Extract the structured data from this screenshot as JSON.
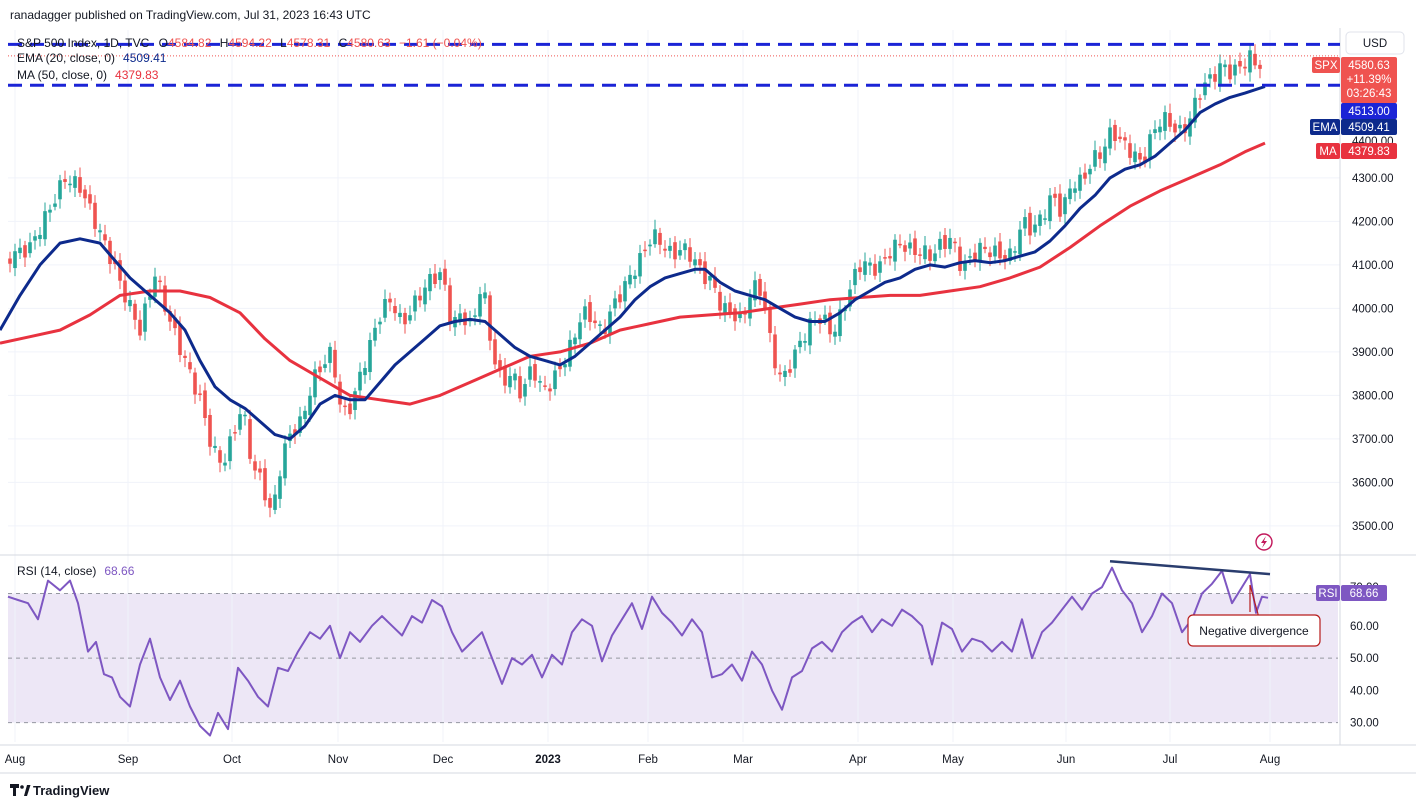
{
  "header": {
    "publisher": "ranadagger published on TradingView.com, Jul 31, 2023 16:43 UTC",
    "symbol": "S&P 500 Index, 1D, TVC",
    "open_label": "O",
    "open": "4584.82",
    "high_label": "H",
    "high": "4594.22",
    "low_label": "L",
    "low": "4578.31",
    "close_label": "C",
    "close": "4580.63",
    "change": "−1.61 (−0.04%)",
    "ema_label": "EMA (20, close, 0)",
    "ema_value": "4509.41",
    "ma_label": "MA (50, close, 0)",
    "ma_value": "4379.83",
    "rsi_label": "RSI (14, close)",
    "rsi_value": "68.66"
  },
  "currency": "USD",
  "price_axis": {
    "ticks": [
      "4300.00",
      "4200.00",
      "4100.00",
      "4000.00",
      "3900.00",
      "3800.00",
      "3700.00",
      "3600.00",
      "3500.00"
    ],
    "tick_values": [
      4300,
      4200,
      4100,
      4000,
      3900,
      3800,
      3700,
      3600,
      3500
    ],
    "min": 3440,
    "max": 4640
  },
  "tags": {
    "spx_label": "SPX",
    "spx_price": "4580.63",
    "spx_change": "+11.39%",
    "spx_time": "03:26:43",
    "level_tag": "4513.00",
    "hidden_tag": "4400.00",
    "ema_name": "EMA",
    "ema_value": "4509.41",
    "ma_name": "MA",
    "ma_value": "4379.83",
    "rsi_name": "RSI",
    "rsi_value": "68.66",
    "rsi_hidden": "70.00"
  },
  "rsi_axis": {
    "ticks": [
      "60.00",
      "50.00",
      "40.00",
      "30.00"
    ],
    "tick_values": [
      60,
      50,
      40,
      30
    ],
    "min": 24,
    "max": 81,
    "band_upper": 70,
    "band_middle": 50,
    "band_lower": 30
  },
  "time_axis": [
    "Aug",
    "Sep",
    "Oct",
    "Nov",
    "Dec",
    "2023",
    "Feb",
    "Mar",
    "Apr",
    "May",
    "Jun",
    "Jul",
    "Aug"
  ],
  "annotation": "Negative divergence",
  "footer_brand": "TradingView",
  "colors": {
    "up": "#26a69a",
    "down": "#ef5350",
    "ema": "#0d2a8c",
    "ma": "#e8323f",
    "hline": "#1b24d6",
    "rsi": "#7e57c2",
    "rsi_band": "#ede7f6",
    "divergence": "#2a3d6e",
    "annotation_border": "#b71c1c"
  },
  "chart_data": {
    "type": "candlestick",
    "symbol": "SPX",
    "timeframe": "1D",
    "horizontal_levels": [
      4607,
      4513
    ],
    "series": [
      {
        "name": "EMA (20, close, 0)",
        "last": 4509.41,
        "points": [
          [
            0,
            3950
          ],
          [
            20,
            4030
          ],
          [
            40,
            4100
          ],
          [
            60,
            4150
          ],
          [
            80,
            4160
          ],
          [
            100,
            4150
          ],
          [
            115,
            4110
          ],
          [
            130,
            4070
          ],
          [
            150,
            4030
          ],
          [
            170,
            3990
          ],
          [
            185,
            3950
          ],
          [
            200,
            3880
          ],
          [
            215,
            3820
          ],
          [
            230,
            3790
          ],
          [
            245,
            3770
          ],
          [
            260,
            3740
          ],
          [
            275,
            3710
          ],
          [
            290,
            3700
          ],
          [
            305,
            3730
          ],
          [
            320,
            3780
          ],
          [
            335,
            3800
          ],
          [
            350,
            3790
          ],
          [
            365,
            3790
          ],
          [
            380,
            3830
          ],
          [
            395,
            3870
          ],
          [
            410,
            3900
          ],
          [
            425,
            3930
          ],
          [
            440,
            3960
          ],
          [
            455,
            3970
          ],
          [
            470,
            3975
          ],
          [
            485,
            3970
          ],
          [
            500,
            3940
          ],
          [
            515,
            3910
          ],
          [
            530,
            3890
          ],
          [
            545,
            3880
          ],
          [
            560,
            3870
          ],
          [
            575,
            3890
          ],
          [
            590,
            3920
          ],
          [
            605,
            3950
          ],
          [
            620,
            3980
          ],
          [
            635,
            4020
          ],
          [
            650,
            4050
          ],
          [
            665,
            4070
          ],
          [
            680,
            4080
          ],
          [
            695,
            4090
          ],
          [
            705,
            4090
          ],
          [
            720,
            4060
          ],
          [
            735,
            4040
          ],
          [
            750,
            4030
          ],
          [
            765,
            4020
          ],
          [
            780,
            4000
          ],
          [
            795,
            3980
          ],
          [
            810,
            3970
          ],
          [
            825,
            3970
          ],
          [
            840,
            3990
          ],
          [
            855,
            4020
          ],
          [
            870,
            4040
          ],
          [
            885,
            4060
          ],
          [
            900,
            4070
          ],
          [
            915,
            4090
          ],
          [
            930,
            4100
          ],
          [
            945,
            4095
          ],
          [
            960,
            4105
          ],
          [
            975,
            4110
          ],
          [
            990,
            4105
          ],
          [
            1005,
            4110
          ],
          [
            1020,
            4120
          ],
          [
            1035,
            4130
          ],
          [
            1050,
            4155
          ],
          [
            1065,
            4190
          ],
          [
            1080,
            4230
          ],
          [
            1095,
            4260
          ],
          [
            1110,
            4300
          ],
          [
            1125,
            4320
          ],
          [
            1140,
            4330
          ],
          [
            1155,
            4350
          ],
          [
            1170,
            4380
          ],
          [
            1185,
            4410
          ],
          [
            1200,
            4450
          ],
          [
            1215,
            4470
          ],
          [
            1230,
            4485
          ],
          [
            1245,
            4495
          ],
          [
            1265,
            4510
          ]
        ]
      },
      {
        "name": "MA (50, close, 0)",
        "last": 4379.83,
        "points": [
          [
            0,
            3920
          ],
          [
            30,
            3935
          ],
          [
            60,
            3950
          ],
          [
            90,
            3985
          ],
          [
            120,
            4030
          ],
          [
            150,
            4040
          ],
          [
            180,
            4040
          ],
          [
            210,
            4025
          ],
          [
            240,
            3990
          ],
          [
            265,
            3930
          ],
          [
            290,
            3880
          ],
          [
            320,
            3840
          ],
          [
            350,
            3800
          ],
          [
            380,
            3790
          ],
          [
            410,
            3780
          ],
          [
            440,
            3800
          ],
          [
            470,
            3830
          ],
          [
            500,
            3860
          ],
          [
            530,
            3890
          ],
          [
            560,
            3900
          ],
          [
            590,
            3920
          ],
          [
            620,
            3950
          ],
          [
            650,
            3965
          ],
          [
            680,
            3980
          ],
          [
            710,
            3985
          ],
          [
            740,
            3990
          ],
          [
            770,
            4000
          ],
          [
            800,
            4010
          ],
          [
            830,
            4020
          ],
          [
            860,
            4025
          ],
          [
            890,
            4030
          ],
          [
            920,
            4030
          ],
          [
            950,
            4040
          ],
          [
            980,
            4050
          ],
          [
            1010,
            4070
          ],
          [
            1040,
            4095
          ],
          [
            1070,
            4140
          ],
          [
            1100,
            4190
          ],
          [
            1130,
            4235
          ],
          [
            1160,
            4270
          ],
          [
            1190,
            4300
          ],
          [
            1220,
            4330
          ],
          [
            1245,
            4360
          ],
          [
            1265,
            4380
          ]
        ]
      },
      {
        "name": "RSI (14, close)",
        "last": 68.66,
        "points": [
          [
            8,
            69
          ],
          [
            18,
            68
          ],
          [
            28,
            67
          ],
          [
            38,
            62
          ],
          [
            48,
            74
          ],
          [
            60,
            71
          ],
          [
            70,
            74
          ],
          [
            78,
            67
          ],
          [
            88,
            52
          ],
          [
            96,
            55
          ],
          [
            104,
            45
          ],
          [
            112,
            44
          ],
          [
            120,
            38
          ],
          [
            130,
            35
          ],
          [
            140,
            48
          ],
          [
            150,
            56
          ],
          [
            160,
            44
          ],
          [
            170,
            37
          ],
          [
            180,
            43
          ],
          [
            190,
            35
          ],
          [
            200,
            29
          ],
          [
            210,
            26
          ],
          [
            218,
            33
          ],
          [
            228,
            28
          ],
          [
            238,
            47
          ],
          [
            248,
            43
          ],
          [
            258,
            38
          ],
          [
            268,
            35
          ],
          [
            278,
            47
          ],
          [
            288,
            46
          ],
          [
            298,
            52
          ],
          [
            310,
            58
          ],
          [
            320,
            56
          ],
          [
            330,
            60
          ],
          [
            340,
            50
          ],
          [
            350,
            58
          ],
          [
            360,
            55
          ],
          [
            372,
            60
          ],
          [
            382,
            63
          ],
          [
            392,
            60
          ],
          [
            402,
            57
          ],
          [
            412,
            63
          ],
          [
            422,
            61
          ],
          [
            432,
            68
          ],
          [
            442,
            66
          ],
          [
            452,
            58
          ],
          [
            462,
            52
          ],
          [
            472,
            55
          ],
          [
            482,
            58
          ],
          [
            492,
            50
          ],
          [
            502,
            42
          ],
          [
            512,
            50
          ],
          [
            522,
            48
          ],
          [
            532,
            51
          ],
          [
            542,
            44
          ],
          [
            552,
            51
          ],
          [
            562,
            48
          ],
          [
            572,
            58
          ],
          [
            582,
            62
          ],
          [
            592,
            60
          ],
          [
            602,
            49
          ],
          [
            612,
            57
          ],
          [
            622,
            62
          ],
          [
            632,
            67
          ],
          [
            642,
            59
          ],
          [
            652,
            69
          ],
          [
            662,
            64
          ],
          [
            672,
            61
          ],
          [
            682,
            57
          ],
          [
            692,
            62
          ],
          [
            702,
            58
          ],
          [
            712,
            44
          ],
          [
            722,
            45
          ],
          [
            732,
            48
          ],
          [
            742,
            43
          ],
          [
            752,
            52
          ],
          [
            762,
            48
          ],
          [
            772,
            40
          ],
          [
            782,
            34
          ],
          [
            792,
            44
          ],
          [
            802,
            46
          ],
          [
            812,
            53
          ],
          [
            822,
            55
          ],
          [
            832,
            52
          ],
          [
            842,
            58
          ],
          [
            852,
            61
          ],
          [
            862,
            63
          ],
          [
            872,
            58
          ],
          [
            882,
            62
          ],
          [
            892,
            60
          ],
          [
            902,
            65
          ],
          [
            912,
            63
          ],
          [
            922,
            60
          ],
          [
            932,
            48
          ],
          [
            942,
            61
          ],
          [
            952,
            59
          ],
          [
            962,
            52
          ],
          [
            972,
            56
          ],
          [
            982,
            55
          ],
          [
            992,
            52
          ],
          [
            1002,
            55
          ],
          [
            1012,
            52
          ],
          [
            1022,
            62
          ],
          [
            1032,
            50
          ],
          [
            1042,
            58
          ],
          [
            1052,
            61
          ],
          [
            1062,
            65
          ],
          [
            1072,
            69
          ],
          [
            1082,
            65
          ],
          [
            1092,
            70
          ],
          [
            1102,
            72
          ],
          [
            1112,
            78
          ],
          [
            1122,
            71
          ],
          [
            1132,
            67
          ],
          [
            1142,
            58
          ],
          [
            1152,
            63
          ],
          [
            1162,
            70
          ],
          [
            1172,
            67
          ],
          [
            1182,
            58
          ],
          [
            1192,
            62
          ],
          [
            1202,
            70
          ],
          [
            1212,
            73
          ],
          [
            1222,
            77
          ],
          [
            1232,
            67
          ],
          [
            1242,
            72
          ],
          [
            1250,
            76
          ],
          [
            1256,
            64
          ],
          [
            1262,
            69
          ],
          [
            1268,
            68.66
          ]
        ]
      }
    ],
    "divergence_line": {
      "from": [
        1110,
        80
      ],
      "to": [
        1270,
        76
      ]
    },
    "x": "trading days from late Jul 2022 to Jul 31 2023",
    "ylim": [
      3440,
      4640
    ]
  }
}
